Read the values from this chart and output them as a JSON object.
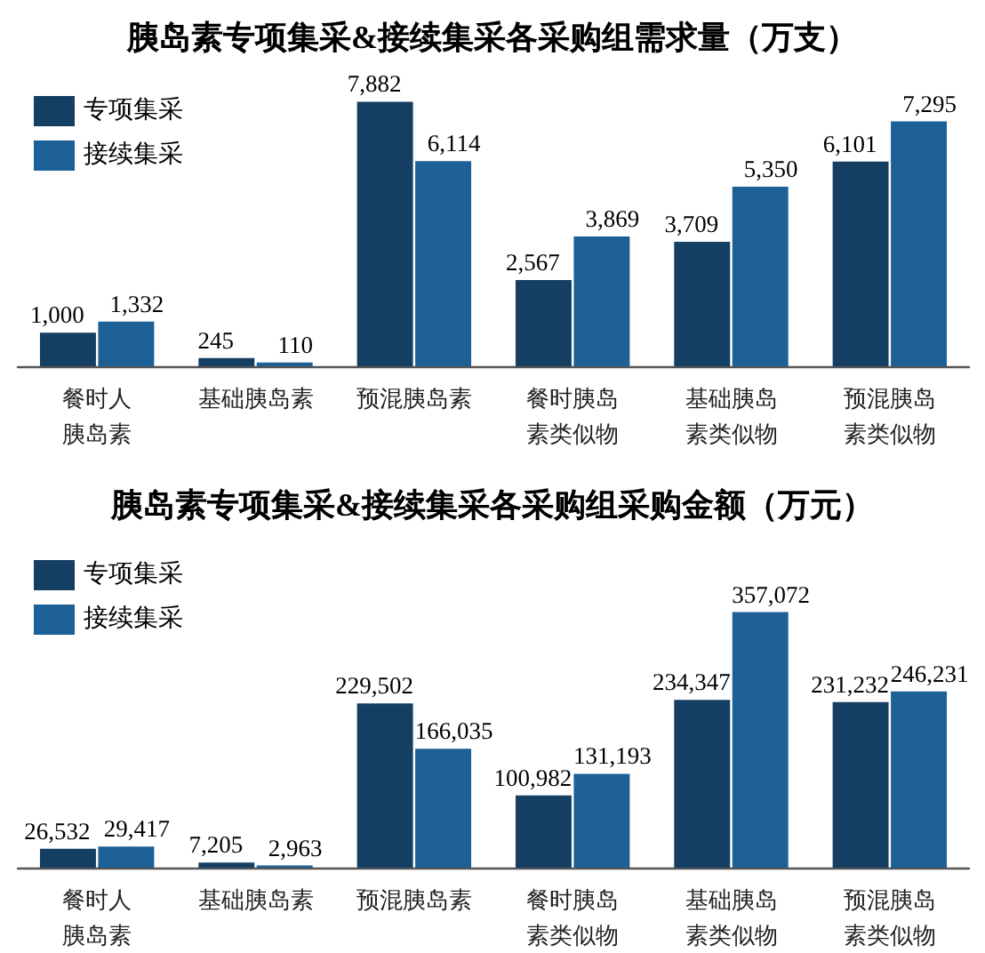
{
  "chart_data": [
    {
      "type": "bar",
      "title": "胰岛素专项集采&接续集采各采购组需求量（万支）",
      "categories": [
        "餐时人胰岛素",
        "基础胰岛素",
        "预混胰岛素",
        "餐时胰岛素类似物",
        "基础胰岛素类似物",
        "预混胰岛素类似物"
      ],
      "series": [
        {
          "name": "专项集采",
          "color": "#143e62",
          "values": [
            1000,
            245,
            7882,
            2567,
            3709,
            6101
          ],
          "value_labels": [
            "1,000",
            "245",
            "7,882",
            "2,567",
            "3,709",
            "6,101"
          ]
        },
        {
          "name": "接续集采",
          "color": "#1d6096",
          "values": [
            1332,
            110,
            6114,
            3869,
            5350,
            7295
          ],
          "value_labels": [
            "1,332",
            "110",
            "6,114",
            "3,869",
            "5,350",
            "7,295"
          ]
        }
      ],
      "legend": "top left",
      "tick_labels": "x"
    },
    {
      "type": "bar",
      "title": "胰岛素专项集采&接续集采各采购组采购金额（万元）",
      "categories": [
        "餐时人胰岛素",
        "基础胰岛素",
        "预混胰岛素",
        "餐时胰岛素类似物",
        "基础胰岛素类似物",
        "预混胰岛素类似物"
      ],
      "series": [
        {
          "name": "专项集采",
          "color": "#143e62",
          "values": [
            26532,
            7205,
            229502,
            100982,
            234347,
            231232
          ],
          "value_labels": [
            "26,532",
            "7,205",
            "229,502",
            "100,982",
            "234,347",
            "231,232"
          ]
        },
        {
          "name": "接续集采",
          "color": "#1d6096",
          "values": [
            29417,
            2963,
            166035,
            131193,
            357072,
            246231
          ],
          "value_labels": [
            "29,417",
            "2,963",
            "166,035",
            "131,193",
            "357,072",
            "246,231"
          ]
        }
      ],
      "legend": "top left",
      "tick_labels": "x"
    }
  ]
}
